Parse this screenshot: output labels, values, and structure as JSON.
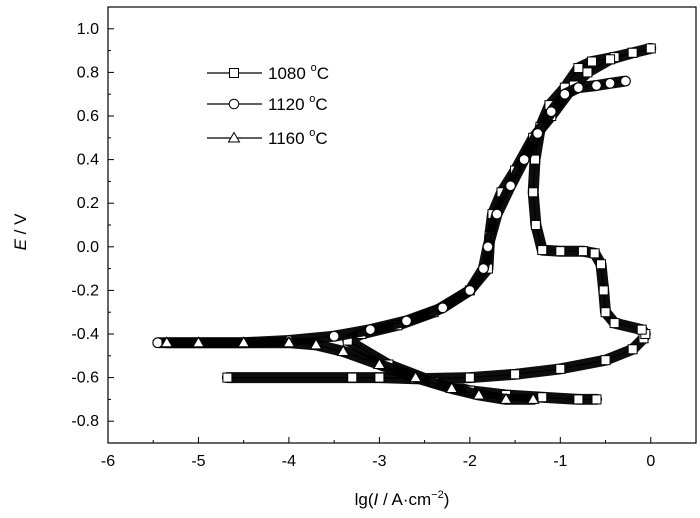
{
  "chart_data": {
    "type": "line",
    "title": "",
    "xlabel": {
      "prefix": "lg(",
      "italic": "I",
      "middle": " / A·cm",
      "sup": "−2",
      "suffix": ")"
    },
    "ylabel": {
      "italic": "E",
      "rest": " / V"
    },
    "xlim": [
      -6,
      0.5
    ],
    "ylim": [
      -0.9,
      1.1
    ],
    "x_ticks": [
      -6,
      -5,
      -4,
      -3,
      -2,
      -1,
      0
    ],
    "x_tick_labels": [
      "-6",
      "-5",
      "-4",
      "-3",
      "-2",
      "-1",
      "0"
    ],
    "y_ticks": [
      -0.8,
      -0.6,
      -0.4,
      -0.2,
      0.0,
      0.2,
      0.4,
      0.6,
      0.8,
      1.0
    ],
    "y_tick_labels": [
      "-0.8",
      "-0.6",
      "-0.4",
      "-0.2",
      "0.0",
      "0.2",
      "0.4",
      "0.6",
      "0.8",
      "1.0"
    ],
    "legend_position": "top-left",
    "grid": false,
    "series": [
      {
        "name": "1080",
        "unit": "°C",
        "unit_sup": "o",
        "unit_letter": "C",
        "marker": "square",
        "points": [
          [
            -4.68,
            -0.6
          ],
          [
            -3.3,
            -0.6
          ],
          [
            -3.0,
            -0.6
          ],
          [
            -2.6,
            -0.605
          ],
          [
            -2.0,
            -0.6
          ],
          [
            -1.5,
            -0.585
          ],
          [
            -1.0,
            -0.56
          ],
          [
            -0.5,
            -0.52
          ],
          [
            -0.2,
            -0.47
          ],
          [
            -0.08,
            -0.42
          ],
          [
            -0.06,
            -0.4
          ],
          [
            -0.1,
            -0.38
          ],
          [
            -0.4,
            -0.35
          ],
          [
            -0.5,
            -0.3
          ],
          [
            -0.52,
            -0.2
          ],
          [
            -0.55,
            -0.08
          ],
          [
            -0.62,
            -0.03
          ],
          [
            -0.75,
            -0.02
          ],
          [
            -1.0,
            -0.02
          ],
          [
            -1.2,
            -0.015
          ],
          [
            -1.27,
            0.1
          ],
          [
            -1.3,
            0.25
          ],
          [
            -1.28,
            0.4
          ],
          [
            -1.22,
            0.55
          ],
          [
            -1.12,
            0.65
          ],
          [
            -0.95,
            0.73
          ],
          [
            -0.8,
            0.82
          ],
          [
            -0.65,
            0.85
          ],
          [
            -0.4,
            0.87
          ],
          [
            -0.2,
            0.89
          ],
          [
            0.0,
            0.91
          ],
          [
            -0.2,
            0.89
          ],
          [
            -0.45,
            0.86
          ],
          [
            -0.7,
            0.8
          ],
          [
            -0.85,
            0.74
          ],
          [
            -1.1,
            0.6
          ],
          [
            -1.3,
            0.5
          ],
          [
            -1.5,
            0.35
          ],
          [
            -1.65,
            0.25
          ],
          [
            -1.75,
            0.15
          ],
          [
            -1.78,
            0.05
          ],
          [
            -1.8,
            -0.1
          ],
          [
            -2.0,
            -0.2
          ],
          [
            -2.4,
            -0.3
          ],
          [
            -2.8,
            -0.36
          ],
          [
            -3.2,
            -0.4
          ],
          [
            -3.35,
            -0.43
          ],
          [
            -2.9,
            -0.54
          ],
          [
            -2.4,
            -0.62
          ],
          [
            -2.0,
            -0.66
          ],
          [
            -1.6,
            -0.68
          ],
          [
            -1.2,
            -0.69
          ],
          [
            -0.8,
            -0.7
          ],
          [
            -0.6,
            -0.7
          ]
        ]
      },
      {
        "name": "1120",
        "unit": "°C",
        "unit_sup": "o",
        "unit_letter": "C",
        "marker": "circle",
        "points": [
          [
            -5.45,
            -0.44
          ],
          [
            -5.0,
            -0.44
          ],
          [
            -4.5,
            -0.44
          ],
          [
            -4.0,
            -0.43
          ],
          [
            -3.5,
            -0.41
          ],
          [
            -3.1,
            -0.38
          ],
          [
            -2.7,
            -0.34
          ],
          [
            -2.3,
            -0.28
          ],
          [
            -2.0,
            -0.2
          ],
          [
            -1.85,
            -0.1
          ],
          [
            -1.8,
            0.0
          ],
          [
            -1.7,
            0.15
          ],
          [
            -1.55,
            0.28
          ],
          [
            -1.4,
            0.4
          ],
          [
            -1.25,
            0.52
          ],
          [
            -1.1,
            0.62
          ],
          [
            -0.95,
            0.7
          ],
          [
            -0.8,
            0.73
          ],
          [
            -0.6,
            0.74
          ],
          [
            -0.45,
            0.75
          ],
          [
            -0.28,
            0.76
          ]
        ]
      },
      {
        "name": "1160",
        "unit": "°C",
        "unit_sup": "o",
        "unit_letter": "C",
        "marker": "triangle",
        "points": [
          [
            -5.35,
            -0.44
          ],
          [
            -5.0,
            -0.44
          ],
          [
            -4.5,
            -0.44
          ],
          [
            -4.0,
            -0.44
          ],
          [
            -3.7,
            -0.45
          ],
          [
            -3.4,
            -0.48
          ],
          [
            -3.0,
            -0.54
          ],
          [
            -2.6,
            -0.6
          ],
          [
            -2.2,
            -0.65
          ],
          [
            -1.9,
            -0.68
          ],
          [
            -1.6,
            -0.7
          ],
          [
            -1.3,
            -0.7
          ]
        ]
      }
    ]
  }
}
